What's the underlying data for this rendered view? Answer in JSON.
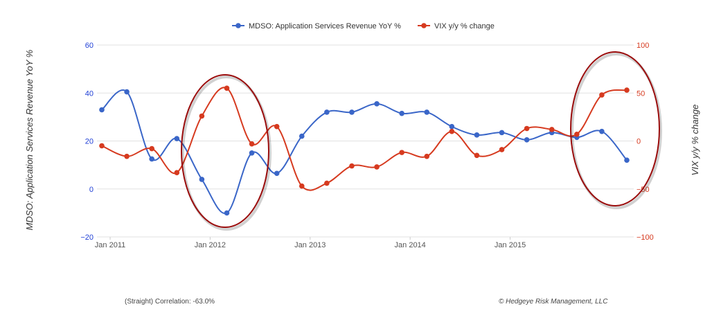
{
  "chart_data": {
    "type": "line",
    "legend_position": "top-center",
    "grid": true,
    "x_ticks": [
      "Jan 2011",
      "Jan 2012",
      "Jan 2013",
      "Jan 2014",
      "Jan 2015"
    ],
    "y_left": {
      "label": "MDSO: Application Services Revenue YoY %",
      "ticks": [
        "60",
        "40",
        "20",
        "0",
        "−20"
      ],
      "range": [
        -20,
        60
      ]
    },
    "y_right": {
      "label": "VIX y/y % change",
      "ticks": [
        "100",
        "50",
        "0",
        "−50",
        "−100"
      ],
      "range": [
        -100,
        100
      ]
    },
    "x": [
      "2010-12",
      "2011-03",
      "2011-06",
      "2011-09",
      "2011-12",
      "2012-03",
      "2012-06",
      "2012-09",
      "2012-12",
      "2013-03",
      "2013-06",
      "2013-09",
      "2013-12",
      "2014-03",
      "2014-06",
      "2014-09",
      "2014-12",
      "2015-03",
      "2015-06",
      "2015-09",
      "2015-12",
      "2016-03"
    ],
    "series": [
      {
        "name": "MDSO: Application Services Revenue YoY %",
        "axis": "left",
        "color": "#3a66c8",
        "values": [
          33,
          40.5,
          12.5,
          21,
          4,
          -10,
          15,
          6.5,
          22,
          32,
          32,
          35.5,
          31.5,
          32,
          26,
          22.5,
          23.5,
          20.5,
          23.5,
          21.5,
          24,
          12
        ]
      },
      {
        "name": "VIX y/y % change",
        "axis": "right",
        "color": "#d63a1f",
        "values": [
          -5,
          -16,
          -8,
          -33,
          26,
          55,
          -3,
          15,
          -47,
          -44,
          -26,
          -27,
          -12,
          -16,
          10,
          -15,
          -9,
          13,
          12,
          7,
          48,
          53
        ]
      }
    ]
  },
  "annotations": {
    "correlation": "(Straight) Correlation: -63.0%",
    "credit": "© Hedgeye Risk Management, LLC"
  },
  "colors": {
    "highlight_ellipse": "#9b0d0d",
    "grid": "#e2e2e2"
  }
}
